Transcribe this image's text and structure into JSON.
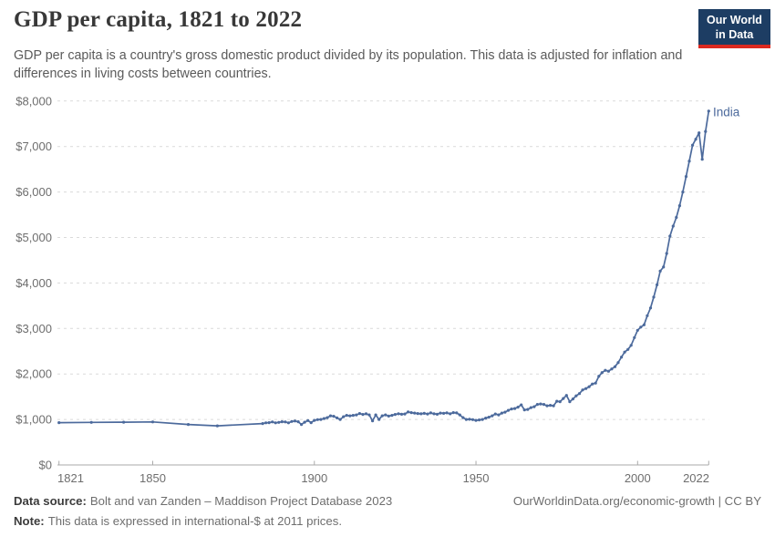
{
  "header": {
    "title": "GDP per capita, 1821 to 2022",
    "subtitle": "GDP per capita is a country's gross domestic product divided by its population. This data is adjusted for inflation and differences in living costs between countries.",
    "logo": {
      "line1": "Our World",
      "line2": "in Data",
      "bg_color": "#1d3d63",
      "accent_color": "#dc2920"
    }
  },
  "footer": {
    "source_label": "Data source:",
    "source_text": "Bolt and van Zanden – Maddison Project Database 2023",
    "note_label": "Note:",
    "note_text": "This data is expressed in international-$ at 2011 prices.",
    "link_text": "OurWorldinData.org/economic-growth | CC BY"
  },
  "chart_data": {
    "type": "line",
    "title": "GDP per capita, 1821 to 2022",
    "xlabel": "",
    "ylabel": "",
    "xlim": [
      1821,
      2022
    ],
    "ylim": [
      0,
      8000
    ],
    "grid": "horizontal-dashed",
    "legend_position": "end-of-line-label",
    "end_label": "India",
    "x_ticks": [
      {
        "value": 1821,
        "label": "1821"
      },
      {
        "value": 1850,
        "label": "1850"
      },
      {
        "value": 1900,
        "label": "1900"
      },
      {
        "value": 1950,
        "label": "1950"
      },
      {
        "value": 2000,
        "label": "2000"
      },
      {
        "value": 2022,
        "label": "2022"
      }
    ],
    "y_ticks": [
      {
        "value": 0,
        "label": "$0"
      },
      {
        "value": 1000,
        "label": "$1,000"
      },
      {
        "value": 2000,
        "label": "$2,000"
      },
      {
        "value": 3000,
        "label": "$3,000"
      },
      {
        "value": 4000,
        "label": "$4,000"
      },
      {
        "value": 5000,
        "label": "$5,000"
      },
      {
        "value": 6000,
        "label": "$6,000"
      },
      {
        "value": 7000,
        "label": "$7,000"
      },
      {
        "value": 8000,
        "label": "$8,000"
      }
    ],
    "series": [
      {
        "name": "India",
        "color": "#4c6a9c",
        "years": [
          1821,
          1831,
          1841,
          1850,
          1861,
          1870,
          1884,
          1885,
          1886,
          1887,
          1888,
          1889,
          1890,
          1891,
          1892,
          1893,
          1894,
          1895,
          1896,
          1897,
          1898,
          1899,
          1900,
          1901,
          1902,
          1903,
          1904,
          1905,
          1906,
          1907,
          1908,
          1909,
          1910,
          1911,
          1912,
          1913,
          1914,
          1915,
          1916,
          1917,
          1918,
          1919,
          1920,
          1921,
          1922,
          1923,
          1924,
          1925,
          1926,
          1927,
          1928,
          1929,
          1930,
          1931,
          1932,
          1933,
          1934,
          1935,
          1936,
          1937,
          1938,
          1939,
          1940,
          1941,
          1942,
          1943,
          1944,
          1945,
          1946,
          1947,
          1948,
          1949,
          1950,
          1951,
          1952,
          1953,
          1954,
          1955,
          1956,
          1957,
          1958,
          1959,
          1960,
          1961,
          1962,
          1963,
          1964,
          1965,
          1966,
          1967,
          1968,
          1969,
          1970,
          1971,
          1972,
          1973,
          1974,
          1975,
          1976,
          1977,
          1978,
          1979,
          1980,
          1981,
          1982,
          1983,
          1984,
          1985,
          1986,
          1987,
          1988,
          1989,
          1990,
          1991,
          1992,
          1993,
          1994,
          1995,
          1996,
          1997,
          1998,
          1999,
          2000,
          2001,
          2002,
          2003,
          2004,
          2005,
          2006,
          2007,
          2008,
          2009,
          2010,
          2011,
          2012,
          2013,
          2014,
          2015,
          2016,
          2017,
          2018,
          2019,
          2020,
          2021,
          2022
        ],
        "values": [
          930,
          935,
          940,
          945,
          890,
          860,
          910,
          925,
          930,
          945,
          925,
          935,
          950,
          945,
          925,
          955,
          965,
          950,
          890,
          940,
          975,
          930,
          980,
          995,
          1000,
          1020,
          1040,
          1080,
          1070,
          1035,
          1000,
          1060,
          1090,
          1080,
          1090,
          1100,
          1130,
          1110,
          1125,
          1100,
          970,
          1100,
          1000,
          1080,
          1100,
          1075,
          1090,
          1110,
          1125,
          1115,
          1120,
          1165,
          1150,
          1140,
          1130,
          1125,
          1135,
          1120,
          1145,
          1125,
          1115,
          1140,
          1135,
          1145,
          1125,
          1150,
          1145,
          1100,
          1040,
          1000,
          1005,
          995,
          980,
          990,
          1000,
          1030,
          1050,
          1080,
          1120,
          1100,
          1140,
          1160,
          1200,
          1230,
          1240,
          1270,
          1320,
          1210,
          1220,
          1260,
          1280,
          1330,
          1340,
          1330,
          1300,
          1310,
          1300,
          1400,
          1390,
          1460,
          1530,
          1390,
          1450,
          1520,
          1570,
          1650,
          1680,
          1720,
          1780,
          1800,
          1950,
          2030,
          2080,
          2060,
          2110,
          2160,
          2250,
          2370,
          2480,
          2540,
          2630,
          2800,
          2960,
          3030,
          3080,
          3280,
          3450,
          3690,
          3960,
          4260,
          4350,
          4650,
          5030,
          5250,
          5440,
          5700,
          6000,
          6340,
          6680,
          7030,
          7160,
          7300,
          6720,
          7330,
          7780
        ]
      }
    ]
  }
}
